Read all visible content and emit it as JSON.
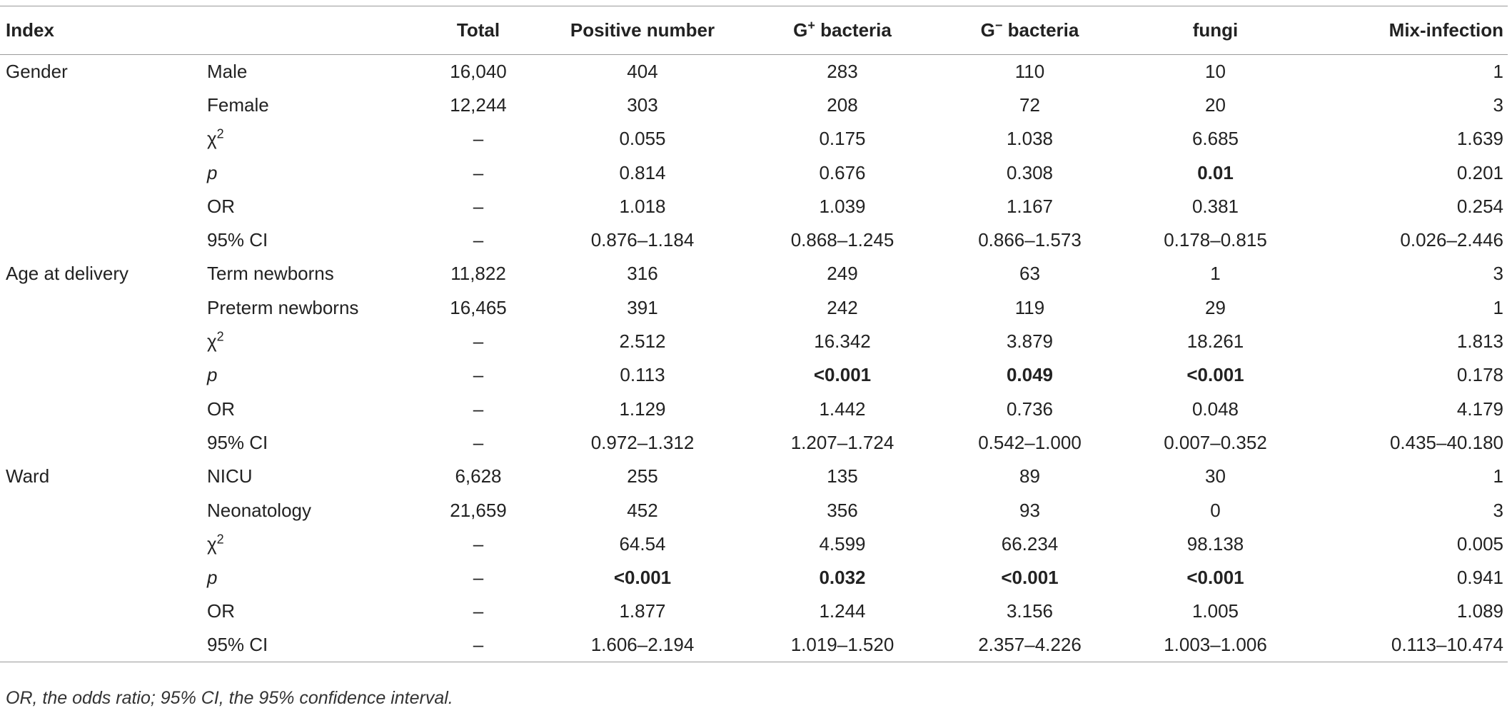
{
  "header": {
    "index": "Index",
    "sub": "",
    "total": "Total",
    "positive": "Positive number",
    "gpos_base": "G",
    "gpos_sup": "+",
    "gpos_rest": " bacteria",
    "gneg_base": "G",
    "gneg_sup": "−",
    "gneg_rest": " bacteria",
    "fungi": "fungi",
    "mix": "Mix-infection"
  },
  "groups": [
    {
      "name": "Gender",
      "rows": [
        {
          "label": "Male",
          "total": "16,040",
          "positive": "404",
          "gpos": "283",
          "gneg": "110",
          "fungi": "10",
          "mix": "1"
        },
        {
          "label": "Female",
          "total": "12,244",
          "positive": "303",
          "gpos": "208",
          "gneg": "72",
          "fungi": "20",
          "mix": "3"
        },
        {
          "label": "χ",
          "label_sup": "2",
          "total": "–",
          "positive": "0.055",
          "gpos": "0.175",
          "gneg": "1.038",
          "fungi": "6.685",
          "mix": "1.639"
        },
        {
          "label": "p",
          "total": "–",
          "positive": "0.814",
          "gpos": "0.676",
          "gneg": "0.308",
          "fungi": "0.01",
          "mix": "0.201"
        },
        {
          "label": "OR",
          "total": "–",
          "positive": "1.018",
          "gpos": "1.039",
          "gneg": "1.167",
          "fungi": "0.381",
          "mix": "0.254"
        },
        {
          "label": "95% CI",
          "total": "–",
          "positive": "0.876–1.184",
          "gpos": "0.868–1.245",
          "gneg": "0.866–1.573",
          "fungi": "0.178–0.815",
          "mix": "0.026–2.446"
        }
      ]
    },
    {
      "name": "Age at delivery",
      "rows": [
        {
          "label": "Term newborns",
          "total": "11,822",
          "positive": "316",
          "gpos": "249",
          "gneg": "63",
          "fungi": "1",
          "mix": "3"
        },
        {
          "label": "Preterm newborns",
          "total": "16,465",
          "positive": "391",
          "gpos": "242",
          "gneg": "119",
          "fungi": "29",
          "mix": "1"
        },
        {
          "label": "χ",
          "label_sup": "2",
          "total": "–",
          "positive": "2.512",
          "gpos": "16.342",
          "gneg": "3.879",
          "fungi": "18.261",
          "mix": "1.813"
        },
        {
          "label": "p",
          "total": "–",
          "positive": "0.113",
          "gpos": "<0.001",
          "gneg": "0.049",
          "fungi": "<0.001",
          "mix": "0.178"
        },
        {
          "label": "OR",
          "total": "–",
          "positive": "1.129",
          "gpos": "1.442",
          "gneg": "0.736",
          "fungi": "0.048",
          "mix": "4.179"
        },
        {
          "label": "95% CI",
          "total": "–",
          "positive": "0.972–1.312",
          "gpos": "1.207–1.724",
          "gneg": "0.542–1.000",
          "fungi": "0.007–0.352",
          "mix": "0.435–40.180"
        }
      ]
    },
    {
      "name": "Ward",
      "rows": [
        {
          "label": "NICU",
          "total": "6,628",
          "positive": "255",
          "gpos": "135",
          "gneg": "89",
          "fungi": "30",
          "mix": "1"
        },
        {
          "label": "Neonatology",
          "total": "21,659",
          "positive": "452",
          "gpos": "356",
          "gneg": "93",
          "fungi": "0",
          "mix": "3"
        },
        {
          "label": "χ",
          "label_sup": "2",
          "total": "–",
          "positive": "64.54",
          "gpos": "4.599",
          "gneg": "66.234",
          "fungi": "98.138",
          "mix": "0.005"
        },
        {
          "label": "p",
          "total": "–",
          "positive": "<0.001",
          "gpos": "0.032",
          "gneg": "<0.001",
          "fungi": "<0.001",
          "mix": "0.941"
        },
        {
          "label": "OR",
          "total": "–",
          "positive": "1.877",
          "gpos": "1.244",
          "gneg": "3.156",
          "fungi": "1.005",
          "mix": "1.089"
        },
        {
          "label": "95% CI",
          "total": "–",
          "positive": "1.606–2.194",
          "gpos": "1.019–1.520",
          "gneg": "2.357–4.226",
          "fungi": "1.003–1.006",
          "mix": "0.113–10.474"
        }
      ]
    }
  ],
  "footnote": "OR, the odds ratio; 95% CI, the 95% confidence interval."
}
